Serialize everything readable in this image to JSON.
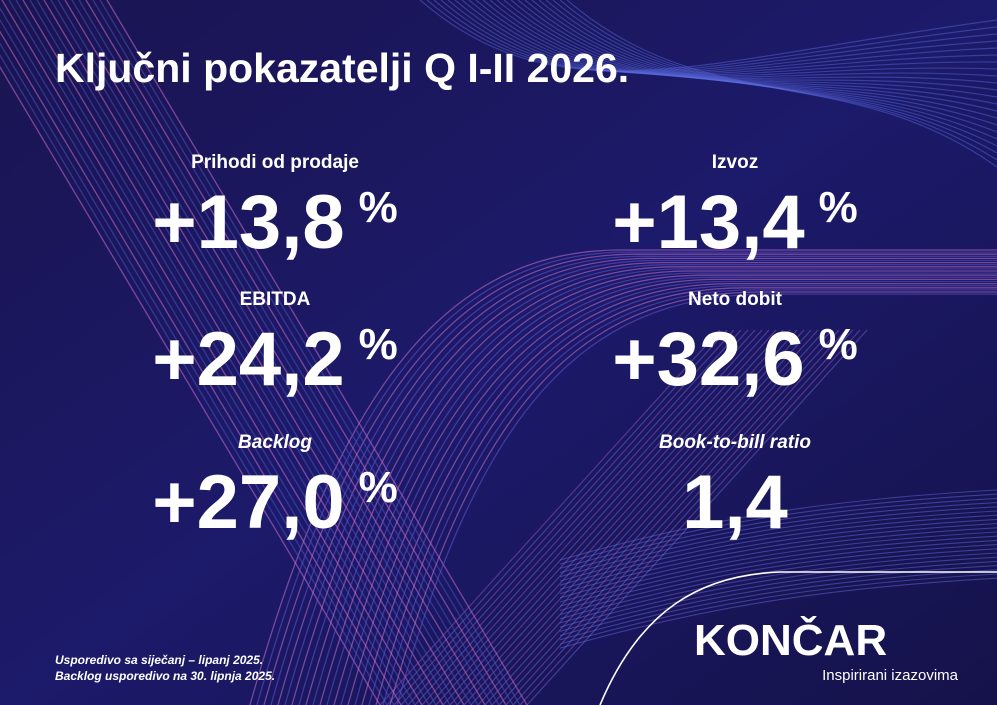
{
  "header": {
    "title": "Ključni pokazatelji Q I-II 2026."
  },
  "metrics": [
    {
      "label": "Prihodi od prodaje",
      "value": "+13,8",
      "unit": "%"
    },
    {
      "label": "Izvoz",
      "value": "+13,4",
      "unit": "%"
    },
    {
      "label": "EBITDA",
      "value": "+24,2",
      "unit": "%"
    },
    {
      "label": "Neto dobit",
      "value": "+32,6",
      "unit": "%"
    },
    {
      "label": "Backlog",
      "value": "+27,0",
      "unit": "%"
    },
    {
      "label": "Book-to-bill ratio",
      "value": "1,4"
    }
  ],
  "footnotes": [
    "Usporedivo sa siječanj – lipanj 2025.",
    "Backlog usporedivo na 30. lipnja 2025."
  ],
  "brand": {
    "logo": "KONČAR",
    "tagline": "Inspirirani izazovima"
  }
}
